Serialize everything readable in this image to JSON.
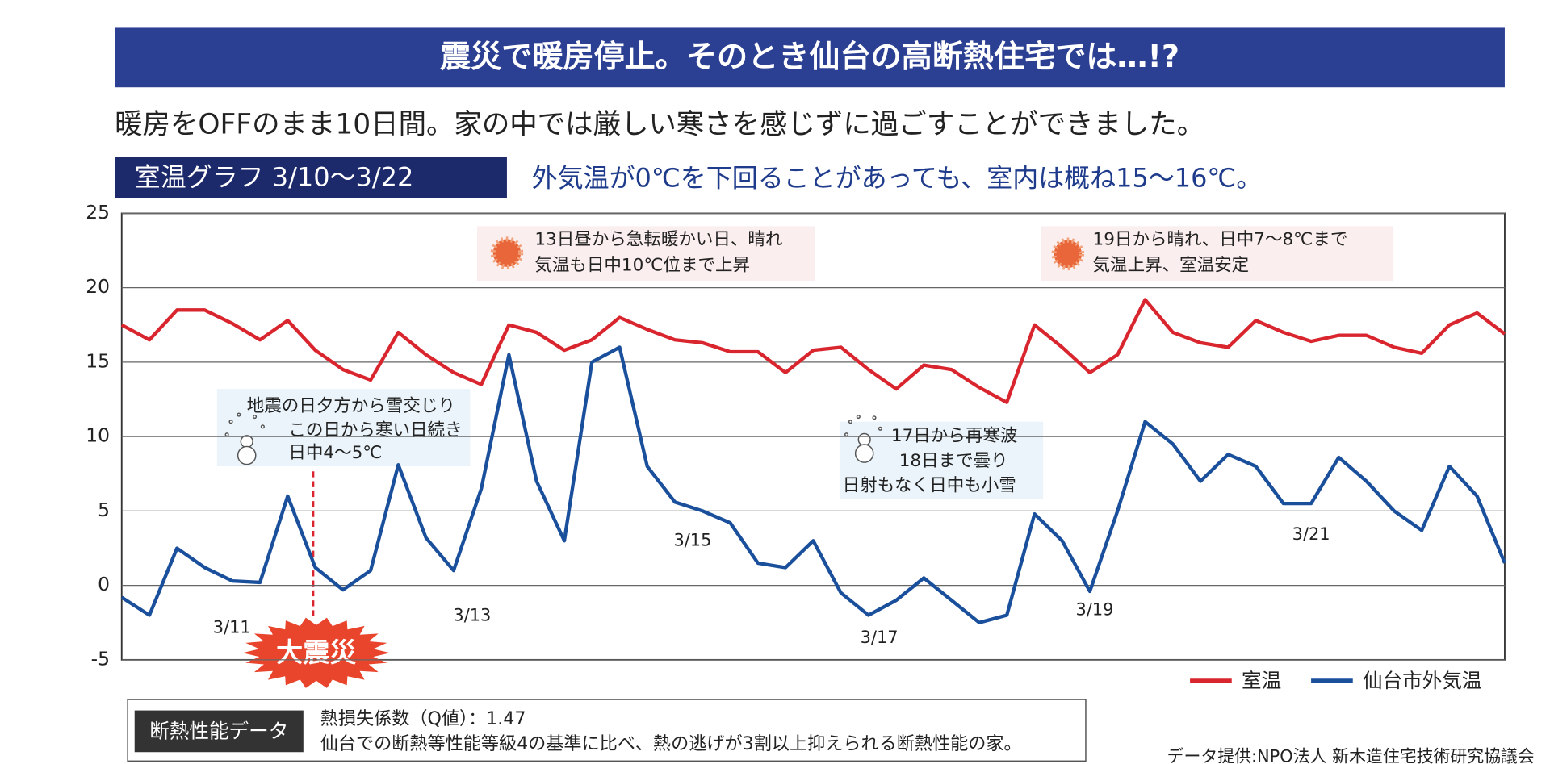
{
  "chart_data": {
    "type": "line",
    "title": "震災で暖房停止。そのとき仙台の高断熱住宅では…!?",
    "subtitle": "暖房をOFFのまま10日間。家の中では厳しい寒さを感じずに過ごすことができました。",
    "graph_label": "室温グラフ 3/10〜3/22",
    "headline_note": "外気温が0℃を下回ることがあっても、室内は概ね15〜16℃。",
    "date_labels": [
      "3/11",
      "3/13",
      "3/15",
      "3/17",
      "3/19",
      "3/21"
    ],
    "annotations": [
      {
        "lines": [
          "13日昼から急転暖かい日、晴れ",
          "気温も日中10℃位まで上昇"
        ]
      },
      {
        "lines": [
          "19日から晴れ、日中7〜8℃まで",
          "気温上昇、室温安定"
        ]
      },
      {
        "lines": [
          "地震の日夕方から雪交じり",
          "この日から寒い日続き",
          "日中4〜5℃"
        ]
      },
      {
        "lines": [
          "17日から再寒波",
          "18日まで曇り",
          "日射もなく日中も小雪"
        ]
      }
    ],
    "event_label": "大震災",
    "ylim": [
      -5,
      25
    ],
    "yticks": [
      -5,
      0,
      5,
      10,
      15,
      20,
      25
    ],
    "grid": true,
    "legend": "bottom-right",
    "series": [
      {
        "name": "室温",
        "color": "#d9262e",
        "values": [
          17.5,
          16.5,
          18.5,
          18.5,
          17.6,
          16.5,
          17.8,
          15.8,
          14.5,
          13.8,
          17,
          15.5,
          14.3,
          13.5,
          17.5,
          17,
          15.8,
          16.5,
          18,
          17.2,
          16.5,
          16.3,
          15.7,
          15.7,
          14.3,
          15.8,
          16,
          14.5,
          13.2,
          14.8,
          14.5,
          13.3,
          12.3,
          17.5,
          16,
          14.3,
          15.5,
          19.2,
          17,
          16.3,
          16,
          17.8,
          17,
          16.4,
          16.8,
          16.8,
          16,
          15.6,
          17.5,
          18.3,
          16.9
        ]
      },
      {
        "name": "仙台市外気温",
        "color": "#1a4f9c",
        "values": [
          -0.8,
          -2,
          2.5,
          1.2,
          0.3,
          0.2,
          6,
          1.2,
          -0.3,
          1,
          8.1,
          3.2,
          1,
          6.5,
          15.5,
          7,
          3,
          15,
          16,
          8,
          5.6,
          5,
          4.2,
          1.5,
          1.2,
          3,
          -0.5,
          -2,
          -1,
          0.5,
          -1,
          -2.5,
          -2,
          4.8,
          3,
          -0.4,
          5,
          11,
          9.5,
          7,
          8.8,
          8,
          5.5,
          5.5,
          8.6,
          7,
          5,
          3.7,
          8,
          6,
          1.5
        ]
      }
    ],
    "data_box": {
      "label": "断熱性能データ",
      "lines": [
        "熱損失係数（Q値）：1.47",
        "仙台での断熱等性能等級4の基準に比べ、熱の逃げが3割以上抑えられる断熱性能の家。"
      ]
    },
    "credit": "データ提供:NPO法人 新木造住宅技術研究協議会"
  }
}
